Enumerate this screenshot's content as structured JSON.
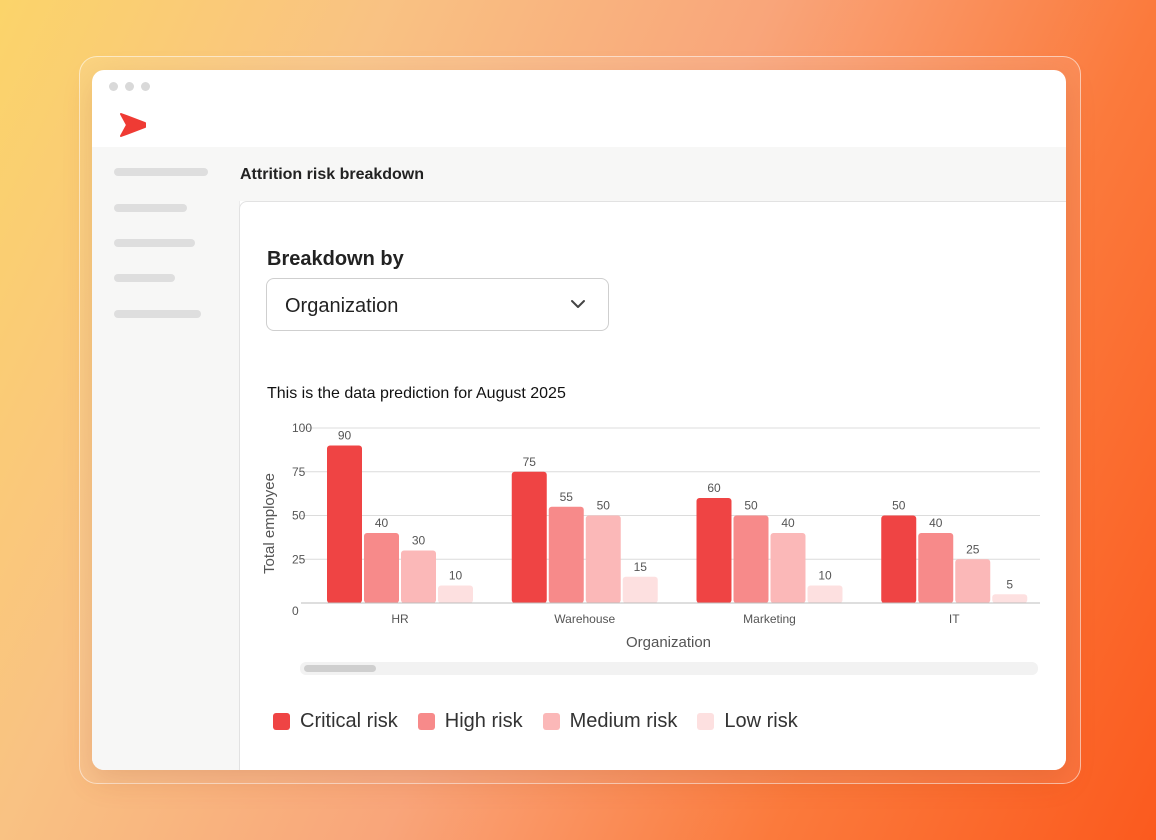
{
  "logo_icon": "red-play-chevron-logo",
  "page": {
    "title": "Attrition risk breakdown",
    "breakdown_label": "Breakdown by",
    "select": {
      "value": "Organization",
      "icon": "chevron-down-icon"
    },
    "caption": "This is the data prediction for August 2025"
  },
  "chart_data": {
    "type": "bar",
    "categories": [
      "HR",
      "Warehouse",
      "Marketing",
      "IT"
    ],
    "series": [
      {
        "name": "Critical risk",
        "values": [
          90,
          75,
          60,
          50
        ],
        "color": "#ef4444"
      },
      {
        "name": "High risk",
        "values": [
          40,
          55,
          50,
          40
        ],
        "color": "#f78a8a"
      },
      {
        "name": "Medium risk",
        "values": [
          30,
          50,
          40,
          25
        ],
        "color": "#fbb8b8"
      },
      {
        "name": "Low risk",
        "values": [
          10,
          15,
          10,
          5
        ],
        "color": "#fde0e0"
      }
    ],
    "yticks": [
      "0",
      "25",
      "50",
      "75",
      "100"
    ],
    "ylim": [
      0,
      100
    ],
    "xlabel": "Organization",
    "ylabel": "Total employee",
    "grid": true,
    "legend_position": "bottom",
    "data_labels": true
  }
}
